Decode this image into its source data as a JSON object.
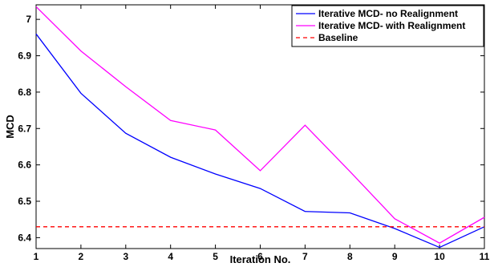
{
  "chart_data": {
    "type": "line",
    "xlabel": "Iteration No.",
    "ylabel": "MCD",
    "xlim": [
      1,
      11
    ],
    "ylim": [
      6.37,
      7.04
    ],
    "x": [
      1,
      2,
      3,
      4,
      5,
      6,
      7,
      8,
      9,
      10,
      11
    ],
    "xticks": [
      "1",
      "2",
      "3",
      "4",
      "5",
      "6",
      "7",
      "8",
      "9",
      "10",
      "11"
    ],
    "yticks": [
      6.4,
      6.5,
      6.6,
      6.7,
      6.8,
      6.9,
      7
    ],
    "ytick_labels": [
      "6.4",
      "6.5",
      "6.6",
      "6.7",
      "6.8",
      "6.9",
      "7"
    ],
    "grid": false,
    "legend_position": "top-right",
    "series": [
      {
        "name": "Iterative MCD- no Realignment",
        "color": "#0000ff",
        "style": "solid",
        "values": [
          6.96,
          6.797,
          6.687,
          6.621,
          6.575,
          6.535,
          6.472,
          6.468,
          6.425,
          6.373,
          6.43
        ]
      },
      {
        "name": "Iterative MCD- with Realignment",
        "color": "#ff00ff",
        "style": "solid",
        "values": [
          7.035,
          6.913,
          6.815,
          6.722,
          6.696,
          6.584,
          6.709,
          6.582,
          6.452,
          6.385,
          6.456
        ]
      },
      {
        "name": "Baseline",
        "color": "#ff0000",
        "style": "dashed",
        "values": [
          6.43,
          6.43,
          6.43,
          6.43,
          6.43,
          6.43,
          6.43,
          6.43,
          6.43,
          6.43,
          6.43
        ]
      }
    ]
  }
}
